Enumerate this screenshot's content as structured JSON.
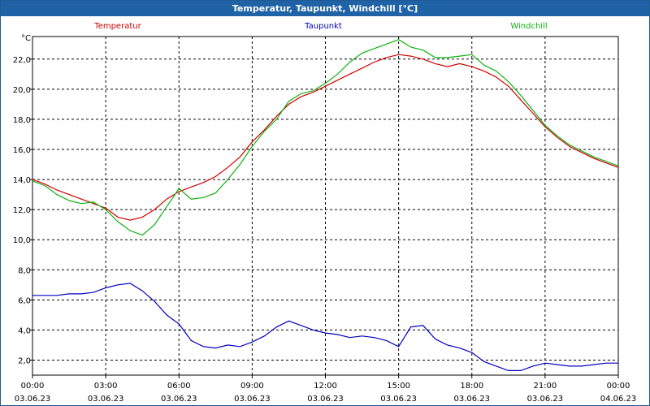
{
  "window": {
    "title": "Temperatur, Taupunkt, Windchill [°C]"
  },
  "chart_data": {
    "type": "line",
    "ylabel": "°C",
    "ylim": [
      1.0,
      23.5
    ],
    "xlim": [
      0,
      24
    ],
    "grid": true,
    "y_ticks": [
      2,
      4,
      6,
      8,
      10,
      12,
      14,
      16,
      18,
      20,
      22
    ],
    "y_tick_labels": [
      "2,0",
      "4,0",
      "6,0",
      "8,0",
      "10,0",
      "12,0",
      "14,0",
      "16,0",
      "18,0",
      "20,0",
      "22,0"
    ],
    "x_ticks": [
      0,
      3,
      6,
      9,
      12,
      15,
      18,
      21,
      24
    ],
    "x_tick_labels": [
      {
        "time": "00:00",
        "date": "03.06.23"
      },
      {
        "time": "03:00",
        "date": "03.06.23"
      },
      {
        "time": "06:00",
        "date": "03.06.23"
      },
      {
        "time": "09:00",
        "date": "03.06.23"
      },
      {
        "time": "12:00",
        "date": "03.06.23"
      },
      {
        "time": "15:00",
        "date": "03.06.23"
      },
      {
        "time": "18:00",
        "date": "03.06.23"
      },
      {
        "time": "21:00",
        "date": "03.06.23"
      },
      {
        "time": "00:00",
        "date": "04.06.23"
      }
    ],
    "x": [
      0,
      0.5,
      1,
      1.5,
      2,
      2.5,
      3,
      3.5,
      4,
      4.5,
      5,
      5.5,
      6,
      6.5,
      7,
      7.5,
      8,
      8.5,
      9,
      9.5,
      10,
      10.5,
      11,
      11.5,
      12,
      12.5,
      13,
      13.5,
      14,
      14.5,
      15,
      15.5,
      16,
      16.5,
      17,
      17.5,
      18,
      18.5,
      19,
      19.5,
      20,
      20.5,
      21,
      21.5,
      22,
      22.5,
      23,
      23.5,
      24
    ],
    "series": [
      {
        "name": "Temperatur",
        "color": "#d00000",
        "values": [
          14.0,
          13.7,
          13.3,
          13.0,
          12.7,
          12.4,
          12.1,
          11.5,
          11.3,
          11.5,
          12.0,
          12.7,
          13.2,
          13.5,
          13.8,
          14.2,
          14.8,
          15.5,
          16.5,
          17.3,
          18.2,
          19.0,
          19.5,
          19.8,
          20.2,
          20.6,
          21.0,
          21.4,
          21.8,
          22.1,
          22.3,
          22.2,
          22.0,
          21.7,
          21.5,
          21.7,
          21.5,
          21.2,
          20.8,
          20.2,
          19.3,
          18.4,
          17.5,
          16.8,
          16.2,
          15.8,
          15.4,
          15.1,
          14.8
        ]
      },
      {
        "name": "Taupunkt",
        "color": "#0000c0",
        "values": [
          6.3,
          6.3,
          6.3,
          6.4,
          6.4,
          6.5,
          6.8,
          7.0,
          7.1,
          6.6,
          5.9,
          5.0,
          4.4,
          3.3,
          2.9,
          2.8,
          3.0,
          2.9,
          3.2,
          3.6,
          4.2,
          4.6,
          4.3,
          4.0,
          3.8,
          3.7,
          3.5,
          3.6,
          3.5,
          3.3,
          2.9,
          4.2,
          4.3,
          3.4,
          3.0,
          2.8,
          2.5,
          1.9,
          1.6,
          1.3,
          1.3,
          1.6,
          1.8,
          1.7,
          1.6,
          1.6,
          1.7,
          1.8,
          1.8
        ]
      },
      {
        "name": "Windchill",
        "color": "#10b010",
        "values": [
          13.9,
          13.6,
          13.0,
          12.6,
          12.4,
          12.5,
          12.0,
          11.2,
          10.6,
          10.3,
          11.0,
          12.2,
          13.4,
          12.7,
          12.8,
          13.1,
          14.0,
          15.0,
          16.2,
          17.2,
          18.0,
          19.2,
          19.7,
          19.9,
          20.4,
          21.0,
          21.8,
          22.4,
          22.7,
          23.0,
          23.3,
          22.8,
          22.6,
          22.1,
          22.1,
          22.2,
          22.3,
          21.6,
          21.2,
          20.5,
          19.6,
          18.6,
          17.6,
          16.9,
          16.3,
          15.9,
          15.5,
          15.2,
          14.9
        ]
      }
    ]
  }
}
